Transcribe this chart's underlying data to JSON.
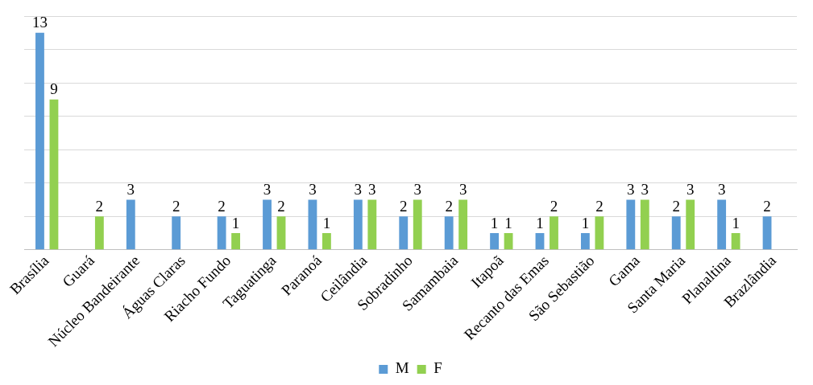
{
  "chart_data": {
    "type": "bar",
    "categories": [
      "Brasília",
      "Guará",
      "Núcleo Bandeirante",
      "Águas Claras",
      "Riacho Fundo",
      "Taguatinga",
      "Paranoá",
      "Ceilândia",
      "Sobradinho",
      "Samambaia",
      "Itapoã",
      "Recanto das Emas",
      "São Sebastião",
      "Gama",
      "Santa Maria",
      "Planaltina",
      "Brazlândia"
    ],
    "series": [
      {
        "name": "M",
        "color": "#5b9bd5",
        "values": [
          13,
          null,
          3,
          2,
          2,
          3,
          3,
          3,
          2,
          2,
          1,
          1,
          1,
          3,
          2,
          3,
          2
        ]
      },
      {
        "name": "F",
        "color": "#92d050",
        "values": [
          9,
          2,
          null,
          null,
          1,
          2,
          1,
          3,
          3,
          3,
          1,
          2,
          2,
          3,
          3,
          1,
          null
        ]
      }
    ],
    "ylim": [
      0,
      14
    ],
    "yticks": [
      {
        "value": 0,
        "label": null
      },
      {
        "value": 2,
        "label": null
      },
      {
        "value": 4,
        "label": null
      },
      {
        "value": 6,
        "label": null
      },
      {
        "value": 8,
        "label": null
      },
      {
        "value": 10,
        "label": null
      },
      {
        "value": 12,
        "label": null
      },
      {
        "value": 14,
        "label": null
      }
    ],
    "tick_labels": "x",
    "grid": "y",
    "legend": "bottom",
    "data_labels": true
  }
}
